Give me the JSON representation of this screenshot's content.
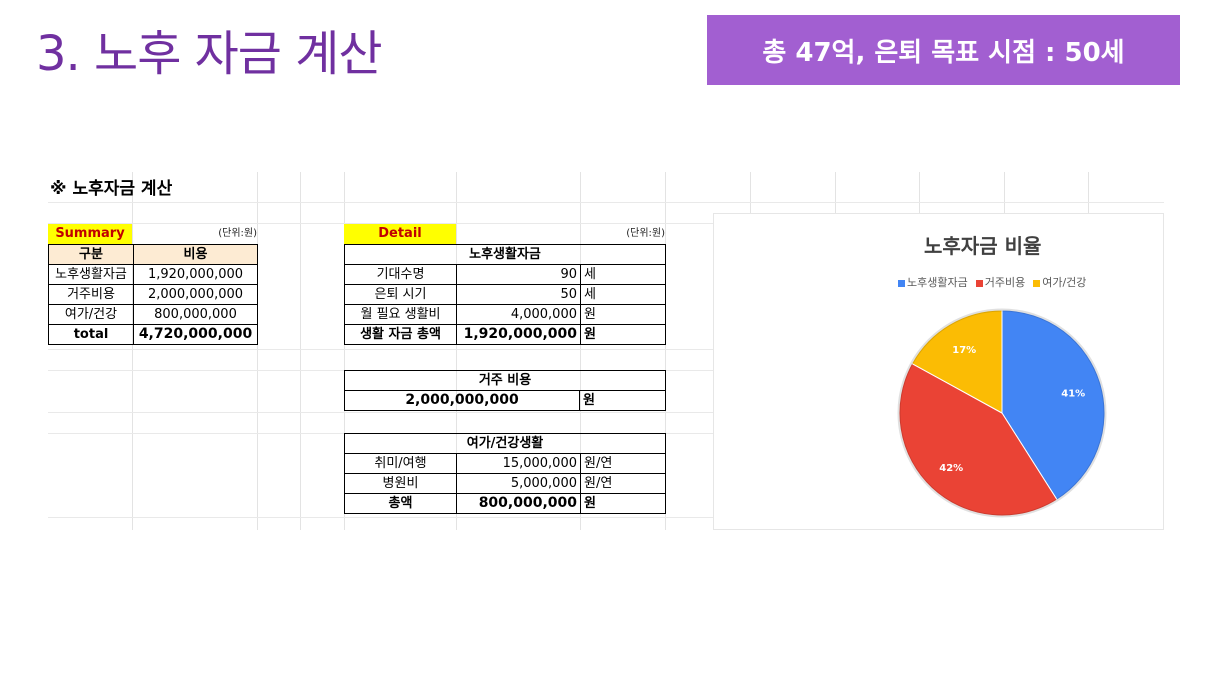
{
  "slide": {
    "title": "3. 노후 자금 계산",
    "badge": "총 47억, 은퇴 목표 시점  : 50세"
  },
  "sheet": {
    "title": "※ 노후자금 계산",
    "summary": {
      "label": "Summary",
      "unit": "(단위:원)",
      "headers": [
        "구분",
        "비용"
      ],
      "rows": [
        {
          "name": "노후생활자금",
          "value": "1,920,000,000"
        },
        {
          "name": "거주비용",
          "value": "2,000,000,000"
        },
        {
          "name": "여가/건강",
          "value": "800,000,000"
        }
      ],
      "total": {
        "name": "total",
        "value": "4,720,000,000"
      }
    },
    "detail": {
      "label": "Detail",
      "unit": "(단위:원)",
      "living": {
        "header": "노후생활자금",
        "rows": [
          {
            "name": "기대수명",
            "value": "90",
            "unit": "세"
          },
          {
            "name": "은퇴 시기",
            "value": "50",
            "unit": "세"
          },
          {
            "name": "월 필요 생활비",
            "value": "4,000,000",
            "unit": "원"
          }
        ],
        "total": {
          "name": "생활 자금 총액",
          "value": "1,920,000,000",
          "unit": "원"
        }
      },
      "housing": {
        "header": "거주 비용",
        "value": "2,000,000,000",
        "unit": "원"
      },
      "leisure": {
        "header": "여가/건강생활",
        "rows": [
          {
            "name": "취미/여행",
            "value": "15,000,000",
            "unit": "원/연"
          },
          {
            "name": "병원비",
            "value": "5,000,000",
            "unit": "원/연"
          }
        ],
        "total": {
          "name": "총액",
          "value": "800,000,000",
          "unit": "원"
        }
      }
    }
  },
  "chart_data": {
    "type": "pie",
    "title": "노후자금 비율",
    "legend_position": "top",
    "categories": [
      "노후생활자금",
      "거주비용",
      "여가/건강"
    ],
    "values": [
      41,
      42,
      17
    ],
    "labels": [
      "41%",
      "42%",
      "17%"
    ],
    "colors": [
      "#4285f4",
      "#ea4335",
      "#fbbc04"
    ]
  }
}
